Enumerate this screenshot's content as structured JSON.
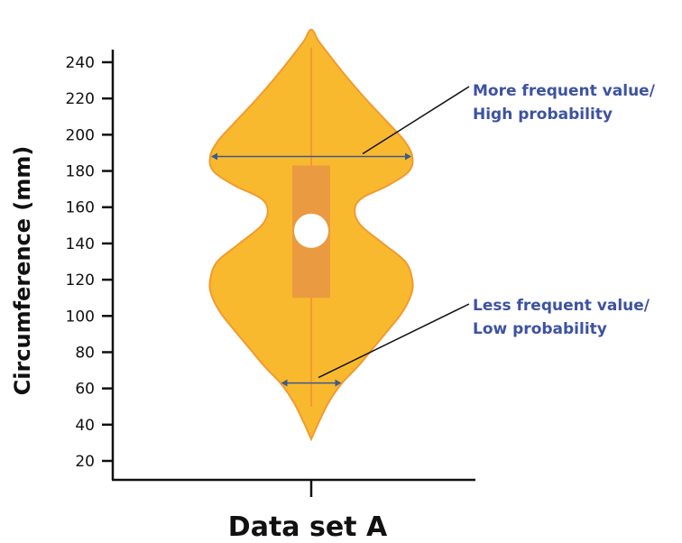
{
  "chart_data": {
    "type": "violin",
    "title": "",
    "xlabel": "Data set A",
    "ylabel": "Circumference (mm)",
    "ylim": [
      15,
      245
    ],
    "yticks": [
      20,
      40,
      60,
      80,
      100,
      120,
      140,
      160,
      180,
      200,
      220,
      240
    ],
    "categories": [
      "Data set A"
    ],
    "whisker_range": [
      50,
      248
    ],
    "violin_extent": [
      32,
      258
    ],
    "box": {
      "q1": 110,
      "q3": 183,
      "median": 147
    },
    "density_profile": [
      {
        "y": 32,
        "half_width": 0.0
      },
      {
        "y": 42,
        "half_width": 0.08
      },
      {
        "y": 52,
        "half_width": 0.17
      },
      {
        "y": 62,
        "half_width": 0.29
      },
      {
        "y": 72,
        "half_width": 0.46
      },
      {
        "y": 82,
        "half_width": 0.61
      },
      {
        "y": 92,
        "half_width": 0.76
      },
      {
        "y": 102,
        "half_width": 0.9
      },
      {
        "y": 112,
        "half_width": 0.99
      },
      {
        "y": 120,
        "half_width": 1.0
      },
      {
        "y": 130,
        "half_width": 0.93
      },
      {
        "y": 140,
        "half_width": 0.71
      },
      {
        "y": 150,
        "half_width": 0.49
      },
      {
        "y": 158,
        "half_width": 0.43
      },
      {
        "y": 165,
        "half_width": 0.5
      },
      {
        "y": 172,
        "half_width": 0.76
      },
      {
        "y": 180,
        "half_width": 0.97
      },
      {
        "y": 188,
        "half_width": 1.0
      },
      {
        "y": 196,
        "half_width": 0.93
      },
      {
        "y": 206,
        "half_width": 0.77
      },
      {
        "y": 216,
        "half_width": 0.6
      },
      {
        "y": 226,
        "half_width": 0.44
      },
      {
        "y": 236,
        "half_width": 0.29
      },
      {
        "y": 246,
        "half_width": 0.15
      },
      {
        "y": 252,
        "half_width": 0.07
      },
      {
        "y": 258,
        "half_width": 0.0
      }
    ],
    "annotations": [
      {
        "lines": [
          "More frequent value/",
          "High probability"
        ],
        "y": 188
      },
      {
        "lines": [
          "Less frequent value/",
          "Low probability"
        ],
        "y": 63
      }
    ],
    "colors": {
      "violin_fill": "#f9b92e",
      "violin_stroke": "#f29a2e",
      "box_fill": "#ea9a40",
      "median_marker": "#ffffff",
      "annotation_text": "#3d52a1",
      "arrow": "#3d5a8c",
      "axis": "#111111"
    }
  }
}
